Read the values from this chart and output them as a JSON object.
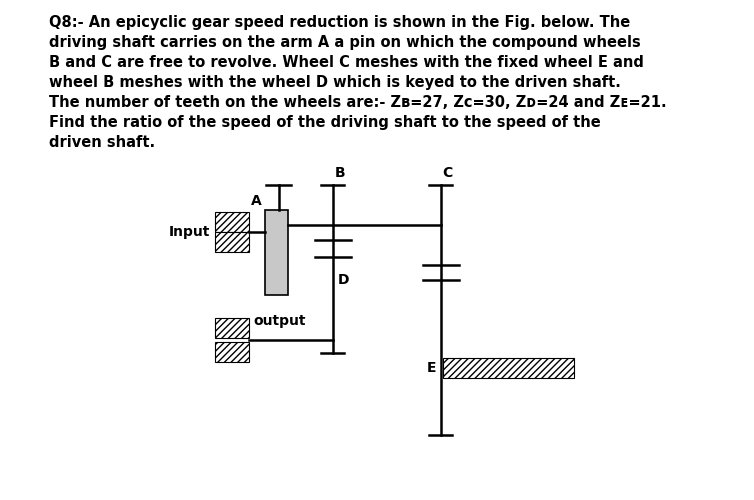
{
  "bg_color": "#ffffff",
  "label_A": "A",
  "label_B": "B",
  "label_C": "C",
  "label_D": "D",
  "label_E": "E",
  "label_input": "Input",
  "label_output": "output",
  "line1": "Q8:- An epicyclic gear speed reduction is shown in the Fig. below. The",
  "line2": "driving shaft carries on the arm A a pin on which the compound wheels",
  "line3": "B and C are free to revolve. Wheel C meshes with the fixed wheel E and",
  "line4": "wheel B meshes with the wheel D which is keyed to the driven shaft.",
  "line5": "The number of teeth on the wheels are:- Z",
  "line5b": "=27, Z",
  "line5c": "=30, Z",
  "line5d": "=24 and Z",
  "line5e": "=21.",
  "line6": "Find the ratio of the speed of the driving shaft to the speed of the",
  "line7": "driven shaft."
}
